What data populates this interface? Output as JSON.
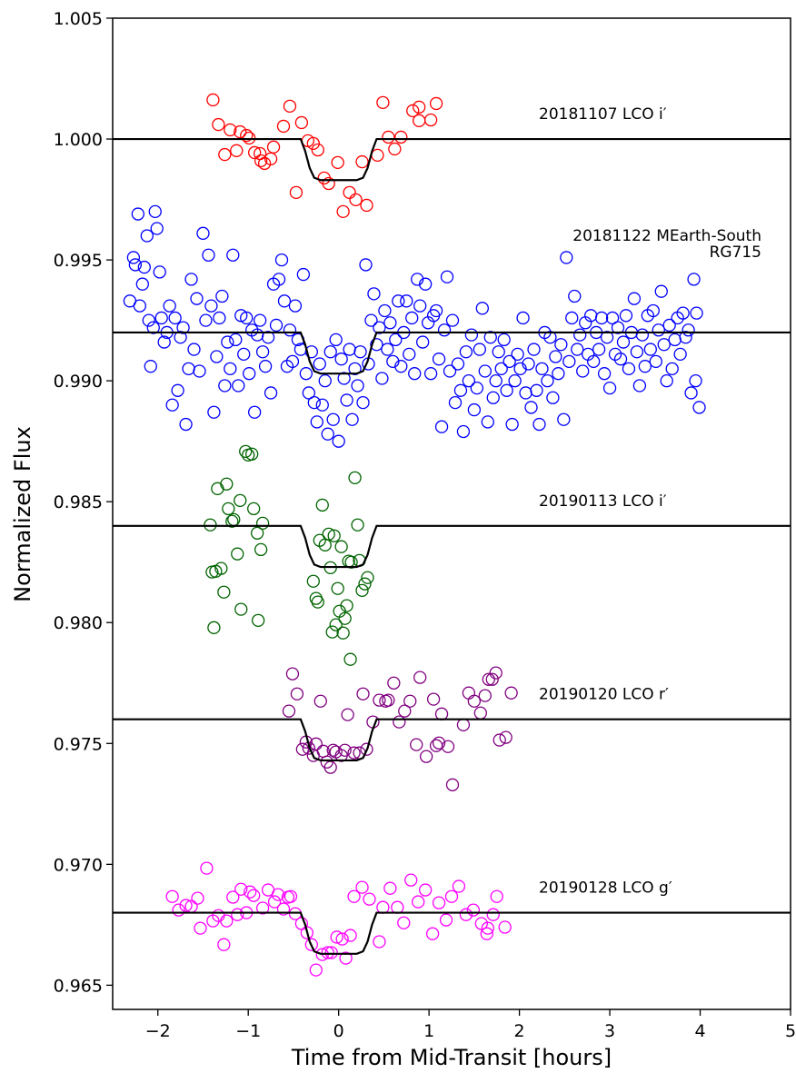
{
  "chart_data": {
    "type": "scatter",
    "x_label": "Time from Mid-Transit [hours]",
    "y_label": "Normalized Flux",
    "xlim": [
      -2.5,
      5
    ],
    "ylim": [
      0.964,
      1.005
    ],
    "xticks": [
      {
        "value": -2,
        "label": "−2"
      },
      {
        "value": -1,
        "label": "−1"
      },
      0,
      1,
      2,
      3,
      4,
      5
    ],
    "yticks": [
      0.965,
      {
        "value": 0.97,
        "label": "0.970"
      },
      0.975,
      {
        "value": 0.98,
        "label": "0.980"
      },
      0.985,
      {
        "value": 0.99,
        "label": "0.990"
      },
      0.995,
      {
        "value": 1,
        "label": "1.000"
      },
      1.005
    ],
    "model_color": "#000000",
    "series": [
      {
        "label": [
          "20181107 LCO i′"
        ],
        "color": "#ff0000",
        "x": [
          -1.39,
          -1.33,
          -1.26,
          -1.2,
          -1.13,
          -1.09,
          -1.02,
          -0.99,
          -0.93,
          -0.87,
          -0.86,
          -0.82,
          -0.75,
          -0.72,
          -0.61,
          -0.54,
          -0.47,
          -0.41,
          -0.34,
          -0.28,
          -0.23,
          -0.16,
          -0.11,
          -0.01,
          0.05,
          0.12,
          0.19,
          0.31,
          0.26,
          0.43,
          0.49,
          0.55,
          0.62,
          0.69,
          0.82,
          0.89,
          1.02,
          1.08,
          0.89
        ],
        "values": [
          1.00162,
          1.0006,
          0.99936,
          1.00038,
          0.99952,
          1.0003,
          1.00015,
          1.00004,
          0.99944,
          0.9994,
          0.9991,
          0.99899,
          0.99918,
          0.99967,
          1.00053,
          1.00136,
          0.99779,
          1.00068,
          0.99993,
          0.99982,
          0.99955,
          0.99839,
          0.99816,
          0.99903,
          0.997,
          0.99779,
          0.99749,
          0.99726,
          0.99906,
          0.99933,
          1.00151,
          1.00008,
          0.99959,
          1.00008,
          1.00117,
          1.00132,
          1.00079,
          1.00147,
          1.00076
        ],
        "model": {
          "x": [
            -2.5,
            -0.42,
            -0.37,
            -0.32,
            -0.27,
            -0.2,
            0.2,
            0.27,
            0.32,
            0.37,
            0.42,
            5
          ],
          "values": [
            1,
            1,
            0.9995,
            0.9988,
            0.9984,
            0.9983,
            0.9983,
            0.9984,
            0.9988,
            0.9995,
            1,
            1
          ]
        }
      },
      {
        "label": [
          "20181122 MEarth-South",
          "RG715"
        ],
        "color": "#0000ff",
        "x": [
          -2.31,
          -2.27,
          -2.25,
          -2.22,
          -2.2,
          -2.17,
          -2.15,
          -2.12,
          -2.1,
          -2.08,
          -2.05,
          -2.03,
          -2.01,
          -1.98,
          -1.96,
          -1.93,
          -1.9,
          -1.87,
          -1.84,
          -1.81,
          -1.78,
          -1.75,
          -1.72,
          -1.69,
          -1.66,
          -1.63,
          -1.6,
          -1.57,
          -1.54,
          -1.5,
          -1.47,
          -1.44,
          -1.41,
          -1.38,
          -1.35,
          -1.32,
          -1.29,
          -1.26,
          -1.23,
          -1.2,
          -1.17,
          -1.14,
          -1.11,
          -1.08,
          -1.05,
          -1.02,
          -0.99,
          -0.96,
          -0.93,
          -0.9,
          -0.87,
          -0.84,
          -0.81,
          -0.78,
          -0.75,
          -0.72,
          -0.69,
          -0.66,
          -0.63,
          -0.6,
          -0.57,
          -0.54,
          -0.51,
          -0.48,
          -0.45,
          -0.42,
          -0.39,
          -0.36,
          -0.33,
          -0.3,
          -0.27,
          -0.24,
          -0.21,
          -0.18,
          -0.15,
          -0.12,
          -0.09,
          -0.06,
          -0.03,
          0,
          0.03,
          0.06,
          0.09,
          0.12,
          0.15,
          0.18,
          0.21,
          0.24,
          0.27,
          0.3,
          0.33,
          0.36,
          0.39,
          0.42,
          0.45,
          0.48,
          0.51,
          0.54,
          0.57,
          0.6,
          0.63,
          0.66,
          0.69,
          0.72,
          0.75,
          0.78,
          0.81,
          0.84,
          0.87,
          0.9,
          0.93,
          0.96,
          0.99,
          1.02,
          1.05,
          1.08,
          1.11,
          1.14,
          1.17,
          1.2,
          1.23,
          1.26,
          1.29,
          1.32,
          1.35,
          1.38,
          1.41,
          1.44,
          1.47,
          1.5,
          1.53,
          1.56,
          1.59,
          1.62,
          1.65,
          1.68,
          1.71,
          1.74,
          1.77,
          1.8,
          1.83,
          1.86,
          1.89,
          1.92,
          1.95,
          1.98,
          2.01,
          2.04,
          2.07,
          2.1,
          2.13,
          2.16,
          2.19,
          2.22,
          2.25,
          2.28,
          2.31,
          2.34,
          2.37,
          2.4,
          2.43,
          2.46,
          2.49,
          2.52,
          2.55,
          2.58,
          2.61,
          2.64,
          2.67,
          2.7,
          2.73,
          2.76,
          2.79,
          2.82,
          2.85,
          2.88,
          2.91,
          2.94,
          2.97,
          3,
          3.03,
          3.06,
          3.09,
          3.12,
          3.15,
          3.18,
          3.21,
          3.24,
          3.27,
          3.3,
          3.33,
          3.36,
          3.39,
          3.42,
          3.45,
          3.48,
          3.51,
          3.54,
          3.57,
          3.6,
          3.63,
          3.66,
          3.69,
          3.72,
          3.75,
          3.78,
          3.81,
          3.84,
          3.87,
          3.9,
          3.93,
          3.96,
          3.99,
          3.95
        ],
        "values": [
          0.9933,
          0.9951,
          0.9948,
          0.9969,
          0.9931,
          0.994,
          0.9947,
          0.996,
          0.9925,
          0.9906,
          0.9922,
          0.997,
          0.9963,
          0.9945,
          0.9926,
          0.9916,
          0.992,
          0.9931,
          0.989,
          0.9926,
          0.9896,
          0.9918,
          0.9922,
          0.9882,
          0.9905,
          0.9942,
          0.9913,
          0.9934,
          0.9904,
          0.9961,
          0.9925,
          0.9952,
          0.9931,
          0.9887,
          0.991,
          0.9926,
          0.9935,
          0.9898,
          0.9916,
          0.9905,
          0.9952,
          0.9917,
          0.9898,
          0.9927,
          0.9911,
          0.9926,
          0.9903,
          0.9921,
          0.9887,
          0.9919,
          0.9925,
          0.9912,
          0.9906,
          0.9918,
          0.9895,
          0.994,
          0.9923,
          0.9942,
          0.995,
          0.9933,
          0.9906,
          0.9921,
          0.9908,
          0.9931,
          0.9917,
          0.9913,
          0.9944,
          0.9903,
          0.9895,
          0.9912,
          0.9891,
          0.9883,
          0.9907,
          0.989,
          0.99,
          0.9878,
          0.9912,
          0.9884,
          0.9917,
          0.9875,
          0.9909,
          0.9901,
          0.9892,
          0.9913,
          0.9884,
          0.9905,
          0.9898,
          0.9912,
          0.9891,
          0.9948,
          0.9907,
          0.9925,
          0.9936,
          0.9915,
          0.9922,
          0.9901,
          0.9929,
          0.9913,
          0.9924,
          0.9908,
          0.9917,
          0.9933,
          0.9906,
          0.992,
          0.9933,
          0.9911,
          0.9926,
          0.9903,
          0.9942,
          0.9931,
          0.9916,
          0.994,
          0.9924,
          0.9903,
          0.9927,
          0.9929,
          0.9909,
          0.9881,
          0.9921,
          0.9943,
          0.9904,
          0.9925,
          0.9891,
          0.9907,
          0.9896,
          0.9879,
          0.9912,
          0.99,
          0.9919,
          0.9888,
          0.9897,
          0.9913,
          0.993,
          0.9904,
          0.9883,
          0.9918,
          0.9893,
          0.99,
          0.9912,
          0.9905,
          0.9917,
          0.9896,
          0.9908,
          0.9882,
          0.99,
          0.9911,
          0.9905,
          0.9926,
          0.9895,
          0.9907,
          0.9889,
          0.9913,
          0.9896,
          0.9882,
          0.9905,
          0.992,
          0.99,
          0.9918,
          0.9893,
          0.991,
          0.9903,
          0.9915,
          0.9884,
          0.9951,
          0.9908,
          0.9926,
          0.9935,
          0.9913,
          0.9919,
          0.9904,
          0.9924,
          0.9911,
          0.9927,
          0.9908,
          0.992,
          0.9913,
          0.9926,
          0.9903,
          0.9918,
          0.9897,
          0.9926,
          0.9911,
          0.9922,
          0.9909,
          0.9916,
          0.9927,
          0.9905,
          0.992,
          0.9934,
          0.9912,
          0.9898,
          0.9919,
          0.9906,
          0.9927,
          0.9913,
          0.9929,
          0.9908,
          0.9921,
          0.9937,
          0.9915,
          0.99,
          0.9923,
          0.9905,
          0.9917,
          0.9926,
          0.9911,
          0.9928,
          0.9918,
          0.9921,
          0.9895,
          0.9942,
          0.9928,
          0.9889,
          0.99
        ],
        "model": {
          "x": [
            -2.5,
            -0.42,
            -0.37,
            -0.32,
            -0.27,
            -0.2,
            0.2,
            0.27,
            0.32,
            0.37,
            0.42,
            5
          ],
          "values": [
            0.992,
            0.992,
            0.9915,
            0.9908,
            0.9904,
            0.9903,
            0.9903,
            0.9904,
            0.9908,
            0.9915,
            0.992,
            0.992
          ]
        }
      },
      {
        "label": [
          "20190113 LCO i′"
        ],
        "color": "#006400",
        "x": [
          -1.42,
          -1.4,
          -1.38,
          -1.36,
          -1.34,
          -1.3,
          -1.27,
          -1.24,
          -1.22,
          -1.18,
          -1.16,
          -1.12,
          -1.09,
          -1.08,
          -1.03,
          -1,
          -0.96,
          -0.94,
          -0.9,
          -0.89,
          -0.86,
          -0.84,
          -0.28,
          -0.25,
          -0.23,
          -0.21,
          -0.18,
          -0.15,
          -0.11,
          -0.09,
          -0.07,
          -0.05,
          -0.03,
          -0.01,
          0.01,
          0.03,
          0.05,
          0.07,
          0.09,
          0.11,
          0.13,
          0.18,
          0.21,
          0.23,
          0.26,
          0.29,
          0.32,
          0.14
        ],
        "values": [
          0.98404,
          0.98209,
          0.97979,
          0.98212,
          0.98554,
          0.98224,
          0.98126,
          0.98573,
          0.98471,
          0.98419,
          0.98426,
          0.98284,
          0.98505,
          0.98055,
          0.98708,
          0.98693,
          0.98697,
          0.98471,
          0.9837,
          0.98009,
          0.98302,
          0.98411,
          0.98171,
          0.981,
          0.98085,
          0.9834,
          0.98486,
          0.98321,
          0.98366,
          0.98227,
          0.97961,
          0.98359,
          0.97991,
          0.98141,
          0.98047,
          0.98314,
          0.97957,
          0.98017,
          0.9807,
          0.98254,
          0.97848,
          0.98599,
          0.98404,
          0.98257,
          0.98133,
          0.9816,
          0.98186,
          0.9825
        ],
        "model": {
          "x": [
            -2.5,
            -0.42,
            -0.37,
            -0.32,
            -0.27,
            -0.2,
            0.2,
            0.27,
            0.32,
            0.37,
            0.42,
            5
          ],
          "values": [
            0.984,
            0.984,
            0.9835,
            0.9828,
            0.9824,
            0.9823,
            0.9823,
            0.9824,
            0.9828,
            0.9835,
            0.984,
            0.984
          ]
        }
      },
      {
        "label": [
          "20190120 LCO r′"
        ],
        "color": "#800080",
        "x": [
          -0.55,
          -0.51,
          -0.46,
          -0.4,
          -0.36,
          -0.33,
          -0.28,
          -0.25,
          -0.2,
          -0.17,
          -0.13,
          -0.09,
          -0.06,
          -0.03,
          0.03,
          0.07,
          0.1,
          0.17,
          0.23,
          0.27,
          0.31,
          0.38,
          0.45,
          0.52,
          0.55,
          0.61,
          0.67,
          0.73,
          0.79,
          0.86,
          0.9,
          0.97,
          1.05,
          1.08,
          1.11,
          1.14,
          1.21,
          1.26,
          1.38,
          1.44,
          1.5,
          1.57,
          1.62,
          1.66,
          1.7,
          1.74,
          1.78,
          1.85,
          1.91
        ],
        "values": [
          0.97634,
          0.97788,
          0.97705,
          0.97476,
          0.97506,
          0.9748,
          0.9745,
          0.97498,
          0.97675,
          0.97468,
          0.97423,
          0.97401,
          0.97472,
          0.97465,
          0.9745,
          0.97472,
          0.97619,
          0.97461,
          0.97461,
          0.97705,
          0.97476,
          0.97589,
          0.97679,
          0.97675,
          0.97679,
          0.9775,
          0.97589,
          0.97634,
          0.97675,
          0.97495,
          0.97773,
          0.97446,
          0.97683,
          0.97491,
          0.97502,
          0.97622,
          0.97487,
          0.97329,
          0.97577,
          0.97709,
          0.97675,
          0.97626,
          0.97698,
          0.97765,
          0.97765,
          0.97792,
          0.97514,
          0.97525,
          0.97709
        ],
        "model": {
          "x": [
            -2.5,
            -0.42,
            -0.37,
            -0.32,
            -0.27,
            -0.2,
            0.2,
            0.27,
            0.32,
            0.37,
            0.42,
            5
          ],
          "values": [
            0.976,
            0.976,
            0.9755,
            0.9748,
            0.9744,
            0.9743,
            0.9743,
            0.9744,
            0.9748,
            0.9755,
            0.976,
            0.976
          ]
        }
      },
      {
        "label": [
          "20190128 LCO g′"
        ],
        "color": "#ff00ff",
        "x": [
          -1.84,
          -1.77,
          -1.69,
          -1.63,
          -1.56,
          -1.53,
          -1.46,
          -1.39,
          -1.33,
          -1.27,
          -1.24,
          -1.17,
          -1.12,
          -1.08,
          -1.02,
          -0.98,
          -0.94,
          -0.84,
          -0.78,
          -0.71,
          -0.67,
          -0.61,
          -0.56,
          -0.53,
          -0.48,
          -0.41,
          -0.35,
          -0.3,
          -0.25,
          -0.18,
          -0.12,
          -0.08,
          -0.02,
          0.04,
          0.08,
          0.13,
          0.17,
          0.26,
          0.34,
          0.45,
          0.49,
          0.57,
          0.65,
          0.72,
          0.8,
          0.88,
          0.96,
          1.04,
          1.11,
          1.19,
          1.25,
          1.33,
          1.41,
          1.49,
          1.58,
          1.65,
          1.75,
          1.84,
          1.64,
          1.71
        ],
        "values": [
          0.96867,
          0.96811,
          0.9683,
          0.96826,
          0.9686,
          0.96736,
          0.96984,
          0.96766,
          0.96788,
          0.96668,
          0.96766,
          0.96864,
          0.96792,
          0.96897,
          0.968,
          0.96886,
          0.96871,
          0.96819,
          0.96894,
          0.96845,
          0.96875,
          0.96815,
          0.96864,
          0.96867,
          0.96796,
          0.96755,
          0.96717,
          0.96668,
          0.96563,
          0.96627,
          0.96635,
          0.96635,
          0.96699,
          0.96691,
          0.96612,
          0.96706,
          0.96867,
          0.96905,
          0.96856,
          0.9668,
          0.96822,
          0.96901,
          0.96822,
          0.96758,
          0.96935,
          0.96845,
          0.96894,
          0.96713,
          0.96841,
          0.9677,
          0.96867,
          0.96909,
          0.96792,
          0.96811,
          0.96755,
          0.96736,
          0.96867,
          0.9674,
          0.96713,
          0.96792
        ],
        "model": {
          "x": [
            -2.5,
            -0.42,
            -0.37,
            -0.32,
            -0.27,
            -0.2,
            0.2,
            0.27,
            0.32,
            0.37,
            0.42,
            5
          ],
          "values": [
            0.968,
            0.968,
            0.9675,
            0.9668,
            0.9664,
            0.9663,
            0.9663,
            0.9664,
            0.9668,
            0.9675,
            0.968,
            0.968
          ]
        }
      }
    ]
  }
}
